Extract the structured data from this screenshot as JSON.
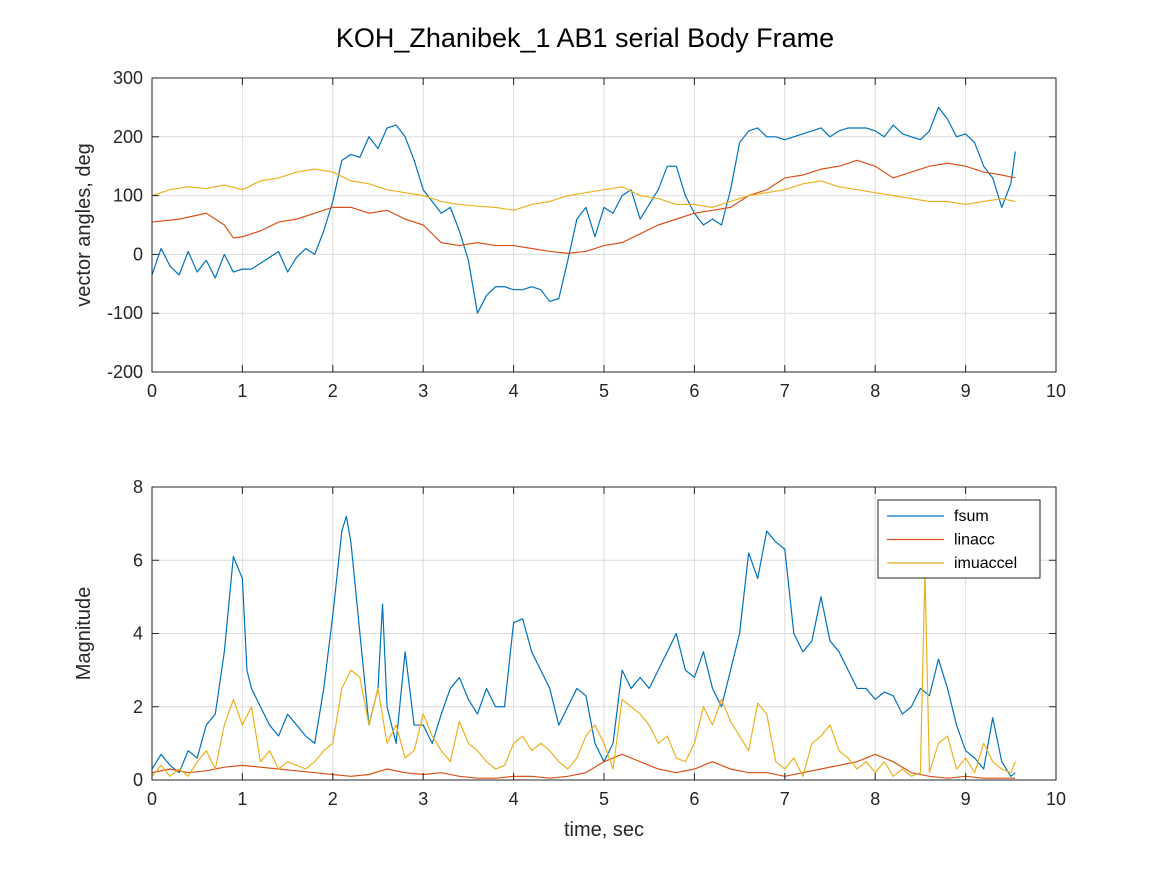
{
  "figure": {
    "title": "KOH_Zhanibek_1    AB1    serial  Body Frame"
  },
  "colors": {
    "fsum": "#0072bd",
    "linacc": "#d95319",
    "imuaccel": "#edb120",
    "grid": "#dcdcdc",
    "axis": "#262626"
  },
  "chart_data": [
    {
      "type": "line",
      "title": "",
      "xlabel": "",
      "ylabel": "vector angles, deg",
      "xlim": [
        0,
        10
      ],
      "ylim": [
        -200,
        300
      ],
      "xticks": [
        0,
        1,
        2,
        3,
        4,
        5,
        6,
        7,
        8,
        9,
        10
      ],
      "yticks": [
        -200,
        -100,
        0,
        100,
        200,
        300
      ],
      "xtick_labels": [
        "0",
        "1",
        "2",
        "3",
        "4",
        "5",
        "6",
        "7",
        "8",
        "9",
        "10"
      ],
      "ytick_labels": [
        "-200",
        "-100",
        "0",
        "100",
        "200",
        "300"
      ],
      "grid": true,
      "series": [
        {
          "key": "fsum",
          "x": [
            0,
            0.1,
            0.2,
            0.3,
            0.4,
            0.5,
            0.6,
            0.7,
            0.8,
            0.9,
            1.0,
            1.1,
            1.2,
            1.3,
            1.4,
            1.5,
            1.6,
            1.7,
            1.8,
            1.9,
            2.0,
            2.1,
            2.2,
            2.3,
            2.4,
            2.5,
            2.6,
            2.7,
            2.8,
            2.9,
            3.0,
            3.1,
            3.2,
            3.3,
            3.4,
            3.5,
            3.6,
            3.7,
            3.8,
            3.9,
            4.0,
            4.1,
            4.2,
            4.3,
            4.4,
            4.5,
            4.6,
            4.7,
            4.8,
            4.9,
            5.0,
            5.1,
            5.2,
            5.3,
            5.4,
            5.5,
            5.6,
            5.7,
            5.8,
            5.9,
            6.0,
            6.1,
            6.2,
            6.3,
            6.4,
            6.5,
            6.6,
            6.7,
            6.8,
            6.9,
            7.0,
            7.1,
            7.2,
            7.3,
            7.4,
            7.5,
            7.6,
            7.7,
            7.8,
            7.9,
            8.0,
            8.1,
            8.2,
            8.3,
            8.4,
            8.5,
            8.6,
            8.7,
            8.8,
            8.9,
            9.0,
            9.1,
            9.2,
            9.3,
            9.4,
            9.5,
            9.55
          ],
          "y": [
            -35,
            10,
            -20,
            -35,
            5,
            -30,
            -10,
            -40,
            0,
            -30,
            -25,
            -25,
            -15,
            -5,
            5,
            -30,
            -5,
            10,
            0,
            40,
            90,
            160,
            170,
            165,
            200,
            180,
            215,
            220,
            200,
            160,
            110,
            90,
            70,
            80,
            40,
            -10,
            -100,
            -70,
            -55,
            -55,
            -60,
            -60,
            -55,
            -60,
            -80,
            -75,
            -10,
            60,
            80,
            30,
            80,
            70,
            100,
            110,
            60,
            85,
            110,
            150,
            150,
            100,
            70,
            50,
            60,
            50,
            110,
            190,
            210,
            215,
            200,
            200,
            195,
            200,
            205,
            210,
            215,
            200,
            210,
            215,
            215,
            215,
            210,
            200,
            220,
            205,
            200,
            195,
            210,
            250,
            230,
            200,
            205,
            190,
            150,
            130,
            80,
            120,
            175
          ]
        },
        {
          "key": "linacc",
          "x": [
            0,
            0.3,
            0.6,
            0.8,
            0.9,
            1.0,
            1.2,
            1.4,
            1.6,
            1.8,
            2.0,
            2.2,
            2.4,
            2.6,
            2.8,
            3.0,
            3.2,
            3.4,
            3.6,
            3.8,
            4.0,
            4.2,
            4.4,
            4.6,
            4.8,
            5.0,
            5.2,
            5.4,
            5.6,
            5.8,
            6.0,
            6.2,
            6.4,
            6.6,
            6.8,
            7.0,
            7.2,
            7.4,
            7.6,
            7.8,
            8.0,
            8.2,
            8.4,
            8.6,
            8.8,
            9.0,
            9.2,
            9.4,
            9.55
          ],
          "y": [
            55,
            60,
            70,
            50,
            28,
            30,
            40,
            55,
            60,
            70,
            80,
            80,
            70,
            75,
            60,
            50,
            20,
            15,
            20,
            15,
            15,
            10,
            5,
            2,
            5,
            15,
            20,
            35,
            50,
            60,
            70,
            75,
            80,
            100,
            110,
            130,
            135,
            145,
            150,
            160,
            150,
            130,
            140,
            150,
            155,
            150,
            140,
            135,
            130
          ]
        },
        {
          "key": "imuaccel",
          "x": [
            0,
            0.2,
            0.4,
            0.6,
            0.8,
            1.0,
            1.2,
            1.4,
            1.6,
            1.8,
            2.0,
            2.2,
            2.4,
            2.6,
            2.8,
            3.0,
            3.2,
            3.4,
            3.6,
            3.8,
            4.0,
            4.2,
            4.4,
            4.6,
            4.8,
            5.0,
            5.2,
            5.4,
            5.6,
            5.8,
            6.0,
            6.2,
            6.4,
            6.6,
            6.8,
            7.0,
            7.2,
            7.4,
            7.6,
            7.8,
            8.0,
            8.2,
            8.4,
            8.6,
            8.8,
            9.0,
            9.2,
            9.4,
            9.55
          ],
          "y": [
            100,
            110,
            115,
            112,
            118,
            110,
            125,
            130,
            140,
            145,
            140,
            125,
            120,
            110,
            105,
            100,
            90,
            85,
            82,
            80,
            75,
            85,
            90,
            100,
            105,
            110,
            115,
            100,
            95,
            85,
            85,
            80,
            90,
            100,
            105,
            110,
            120,
            125,
            115,
            110,
            105,
            100,
            95,
            90,
            90,
            85,
            90,
            95,
            90
          ]
        }
      ]
    },
    {
      "type": "line",
      "title": "",
      "xlabel": "time, sec",
      "ylabel": "Magnitude",
      "xlim": [
        0,
        10
      ],
      "ylim": [
        0,
        8
      ],
      "xticks": [
        0,
        1,
        2,
        3,
        4,
        5,
        6,
        7,
        8,
        9,
        10
      ],
      "yticks": [
        0,
        2,
        4,
        6,
        8
      ],
      "xtick_labels": [
        "0",
        "1",
        "2",
        "3",
        "4",
        "5",
        "6",
        "7",
        "8",
        "9",
        "10"
      ],
      "ytick_labels": [
        "0",
        "2",
        "4",
        "6",
        "8"
      ],
      "grid": true,
      "legend": {
        "position": "top-right",
        "entries": [
          "fsum",
          "linacc",
          "imuaccel"
        ]
      },
      "series": [
        {
          "name": "fsum",
          "key": "fsum",
          "x": [
            0,
            0.1,
            0.2,
            0.3,
            0.4,
            0.5,
            0.6,
            0.7,
            0.8,
            0.85,
            0.9,
            0.95,
            1.0,
            1.05,
            1.1,
            1.2,
            1.3,
            1.4,
            1.5,
            1.6,
            1.7,
            1.8,
            1.9,
            2.0,
            2.1,
            2.15,
            2.2,
            2.3,
            2.4,
            2.5,
            2.55,
            2.6,
            2.7,
            2.8,
            2.9,
            3.0,
            3.1,
            3.2,
            3.3,
            3.4,
            3.5,
            3.6,
            3.7,
            3.8,
            3.9,
            4.0,
            4.1,
            4.2,
            4.3,
            4.4,
            4.5,
            4.6,
            4.7,
            4.8,
            4.9,
            5.0,
            5.1,
            5.2,
            5.3,
            5.4,
            5.5,
            5.6,
            5.7,
            5.8,
            5.9,
            6.0,
            6.1,
            6.2,
            6.3,
            6.4,
            6.5,
            6.6,
            6.7,
            6.8,
            6.9,
            7.0,
            7.1,
            7.2,
            7.3,
            7.4,
            7.5,
            7.6,
            7.7,
            7.8,
            7.9,
            8.0,
            8.1,
            8.2,
            8.3,
            8.4,
            8.5,
            8.6,
            8.7,
            8.8,
            8.9,
            9.0,
            9.1,
            9.2,
            9.3,
            9.4,
            9.5,
            9.55
          ],
          "y": [
            0.3,
            0.7,
            0.4,
            0.2,
            0.8,
            0.6,
            1.5,
            1.8,
            3.5,
            4.8,
            6.1,
            5.8,
            5.5,
            3.0,
            2.5,
            2.0,
            1.5,
            1.2,
            1.8,
            1.5,
            1.2,
            1.0,
            2.5,
            4.5,
            6.8,
            7.2,
            6.5,
            4.0,
            1.5,
            2.5,
            4.8,
            2.0,
            1.0,
            3.5,
            1.5,
            1.5,
            1.0,
            1.8,
            2.5,
            2.8,
            2.2,
            1.8,
            2.5,
            2.0,
            2.0,
            4.3,
            4.4,
            3.5,
            3.0,
            2.5,
            1.5,
            2.0,
            2.5,
            2.3,
            1.0,
            0.5,
            1.0,
            3.0,
            2.5,
            2.8,
            2.5,
            3.0,
            3.5,
            4.0,
            3.0,
            2.8,
            3.5,
            2.5,
            2.0,
            3.0,
            4.0,
            6.2,
            5.5,
            6.8,
            6.5,
            6.3,
            4.0,
            3.5,
            3.8,
            5.0,
            3.8,
            3.5,
            3.0,
            2.5,
            2.5,
            2.2,
            2.4,
            2.3,
            1.8,
            2.0,
            2.5,
            2.3,
            3.3,
            2.5,
            1.5,
            0.8,
            0.6,
            0.3,
            1.7,
            0.5,
            0.1,
            0.2
          ]
        },
        {
          "name": "linacc",
          "key": "linacc",
          "x": [
            0,
            0.2,
            0.4,
            0.6,
            0.8,
            1.0,
            1.2,
            1.4,
            1.6,
            1.8,
            2.0,
            2.2,
            2.4,
            2.6,
            2.8,
            3.0,
            3.2,
            3.4,
            3.6,
            3.8,
            4.0,
            4.2,
            4.4,
            4.6,
            4.8,
            5.0,
            5.2,
            5.4,
            5.6,
            5.8,
            6.0,
            6.2,
            6.4,
            6.6,
            6.8,
            7.0,
            7.2,
            7.4,
            7.6,
            7.8,
            8.0,
            8.2,
            8.4,
            8.6,
            8.8,
            9.0,
            9.2,
            9.4,
            9.55
          ],
          "y": [
            0.2,
            0.3,
            0.2,
            0.25,
            0.35,
            0.4,
            0.35,
            0.3,
            0.25,
            0.2,
            0.15,
            0.1,
            0.15,
            0.3,
            0.2,
            0.15,
            0.2,
            0.1,
            0.05,
            0.05,
            0.1,
            0.1,
            0.05,
            0.1,
            0.2,
            0.5,
            0.7,
            0.5,
            0.3,
            0.2,
            0.3,
            0.5,
            0.3,
            0.2,
            0.2,
            0.1,
            0.2,
            0.3,
            0.4,
            0.5,
            0.7,
            0.5,
            0.2,
            0.1,
            0.05,
            0.1,
            0.05,
            0.05,
            0.05
          ]
        },
        {
          "name": "imuaccel",
          "key": "imuaccel",
          "x": [
            0,
            0.1,
            0.2,
            0.3,
            0.4,
            0.5,
            0.6,
            0.7,
            0.8,
            0.9,
            1.0,
            1.1,
            1.2,
            1.3,
            1.4,
            1.5,
            1.6,
            1.7,
            1.8,
            1.9,
            2.0,
            2.1,
            2.2,
            2.3,
            2.4,
            2.5,
            2.6,
            2.7,
            2.8,
            2.9,
            3.0,
            3.1,
            3.2,
            3.3,
            3.4,
            3.5,
            3.6,
            3.7,
            3.8,
            3.9,
            4.0,
            4.1,
            4.2,
            4.3,
            4.4,
            4.5,
            4.6,
            4.7,
            4.8,
            4.9,
            5.0,
            5.1,
            5.2,
            5.3,
            5.4,
            5.5,
            5.6,
            5.7,
            5.8,
            5.9,
            6.0,
            6.1,
            6.2,
            6.3,
            6.4,
            6.5,
            6.6,
            6.7,
            6.8,
            6.9,
            7.0,
            7.1,
            7.2,
            7.3,
            7.4,
            7.5,
            7.6,
            7.7,
            7.8,
            7.9,
            8.0,
            8.1,
            8.2,
            8.3,
            8.4,
            8.5,
            8.55,
            8.6,
            8.7,
            8.8,
            8.9,
            9.0,
            9.1,
            9.2,
            9.3,
            9.4,
            9.5,
            9.55
          ],
          "y": [
            0.1,
            0.4,
            0.1,
            0.3,
            0.1,
            0.5,
            0.8,
            0.3,
            1.5,
            2.2,
            1.5,
            2.0,
            0.5,
            0.8,
            0.3,
            0.5,
            0.4,
            0.3,
            0.5,
            0.8,
            1.0,
            2.5,
            3.0,
            2.8,
            1.5,
            2.5,
            1.0,
            1.5,
            0.6,
            0.8,
            1.8,
            1.2,
            0.8,
            0.5,
            1.6,
            1.0,
            0.8,
            0.5,
            0.3,
            0.4,
            1.0,
            1.2,
            0.8,
            1.0,
            0.8,
            0.5,
            0.3,
            0.6,
            1.2,
            1.5,
            1.0,
            0.3,
            2.2,
            2.0,
            1.8,
            1.5,
            1.0,
            1.2,
            0.6,
            0.5,
            1.0,
            2.0,
            1.5,
            2.2,
            1.6,
            1.2,
            0.8,
            2.1,
            1.8,
            0.5,
            0.3,
            0.6,
            0.1,
            1.0,
            1.2,
            1.5,
            0.8,
            0.6,
            0.3,
            0.5,
            0.2,
            0.5,
            0.1,
            0.3,
            0.1,
            0.2,
            5.7,
            0.2,
            1.0,
            1.2,
            0.3,
            0.6,
            0.2,
            1.0,
            0.5,
            0.3,
            0.2,
            0.5
          ]
        }
      ]
    }
  ]
}
